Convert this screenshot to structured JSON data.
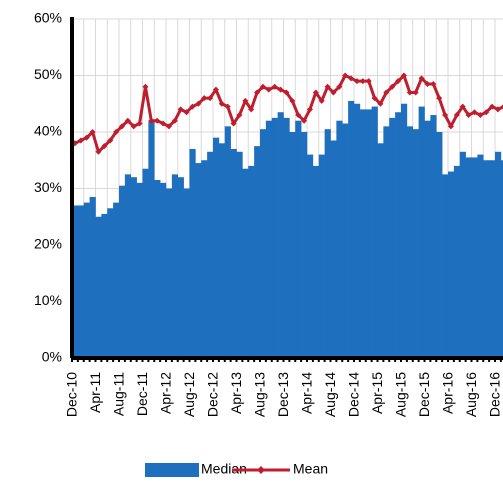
{
  "chart_data": {
    "type": "bar+line",
    "categories": [
      "Dec-10",
      null,
      null,
      null,
      "Apr-11",
      null,
      null,
      null,
      "Aug-11",
      null,
      null,
      null,
      "Dec-11",
      null,
      null,
      null,
      "Apr-12",
      null,
      null,
      null,
      "Aug-12",
      null,
      null,
      null,
      "Dec-12",
      null,
      null,
      null,
      "Apr-13",
      null,
      null,
      null,
      "Aug-13",
      null,
      null,
      null,
      "Dec-13",
      null,
      null,
      null,
      "Apr-14",
      null,
      null,
      null,
      "Aug-14",
      null,
      null,
      null,
      "Dec-14",
      null,
      null,
      null,
      "Apr-15",
      null,
      null,
      null,
      "Aug-15",
      null,
      null,
      null,
      "Dec-15",
      null,
      null,
      null,
      "Apr-16",
      null,
      null,
      null,
      "Aug-16",
      null,
      null,
      null,
      "Dec-16",
      null
    ],
    "series": [
      {
        "name": "Median",
        "type": "bar",
        "color": "#1f6fbf",
        "values": [
          27,
          27,
          27.5,
          28.5,
          25,
          25.5,
          26.5,
          27.5,
          30.5,
          32.5,
          32,
          31,
          33.5,
          42,
          31.5,
          31,
          30,
          32.5,
          32,
          30,
          37,
          34.5,
          35,
          36.5,
          39,
          38,
          41,
          37,
          36.5,
          33.5,
          34,
          37.5,
          40.5,
          42,
          42.5,
          43.5,
          42.5,
          40,
          42,
          40,
          36,
          34,
          36,
          40.5,
          38.5,
          42,
          41.5,
          45.5,
          45,
          44,
          44,
          44.5,
          38,
          41,
          42.5,
          43.5,
          45,
          41,
          40.5,
          44.5,
          42,
          43,
          40,
          32.5,
          33,
          34,
          36.5,
          35.5,
          35.5,
          36,
          35,
          35,
          36.5,
          35
        ]
      },
      {
        "name": "Mean",
        "type": "line",
        "color": "#be1e2d",
        "values": [
          38,
          38.5,
          39,
          40,
          36.5,
          37.5,
          38.5,
          40,
          41,
          42,
          41,
          41.5,
          48,
          42,
          42,
          41.5,
          41,
          42,
          44,
          43.5,
          44.5,
          45,
          46,
          46,
          47.5,
          45,
          44.5,
          41.5,
          43,
          45.5,
          44,
          47,
          48,
          47.5,
          48,
          47.5,
          47,
          45.5,
          43,
          42,
          44,
          47,
          45.5,
          48,
          47,
          48,
          50,
          49.5,
          49,
          49,
          49,
          46,
          45,
          47,
          48,
          49,
          50,
          47,
          47,
          49.5,
          48.5,
          48.5,
          46,
          43,
          41,
          43,
          44.5,
          43,
          43.5,
          43,
          43.5,
          44.5,
          44,
          44.5
        ]
      }
    ],
    "ylim": [
      0,
      60
    ],
    "yticks": [
      {
        "value": 0,
        "label": "0%"
      },
      {
        "value": 10,
        "label": "10%"
      },
      {
        "value": 20,
        "label": "20%"
      },
      {
        "value": 30,
        "label": "30%"
      },
      {
        "value": 40,
        "label": "40%"
      },
      {
        "value": 50,
        "label": "50%"
      },
      {
        "value": 60,
        "label": "60%"
      }
    ],
    "grid": true,
    "legend": "bottom"
  }
}
